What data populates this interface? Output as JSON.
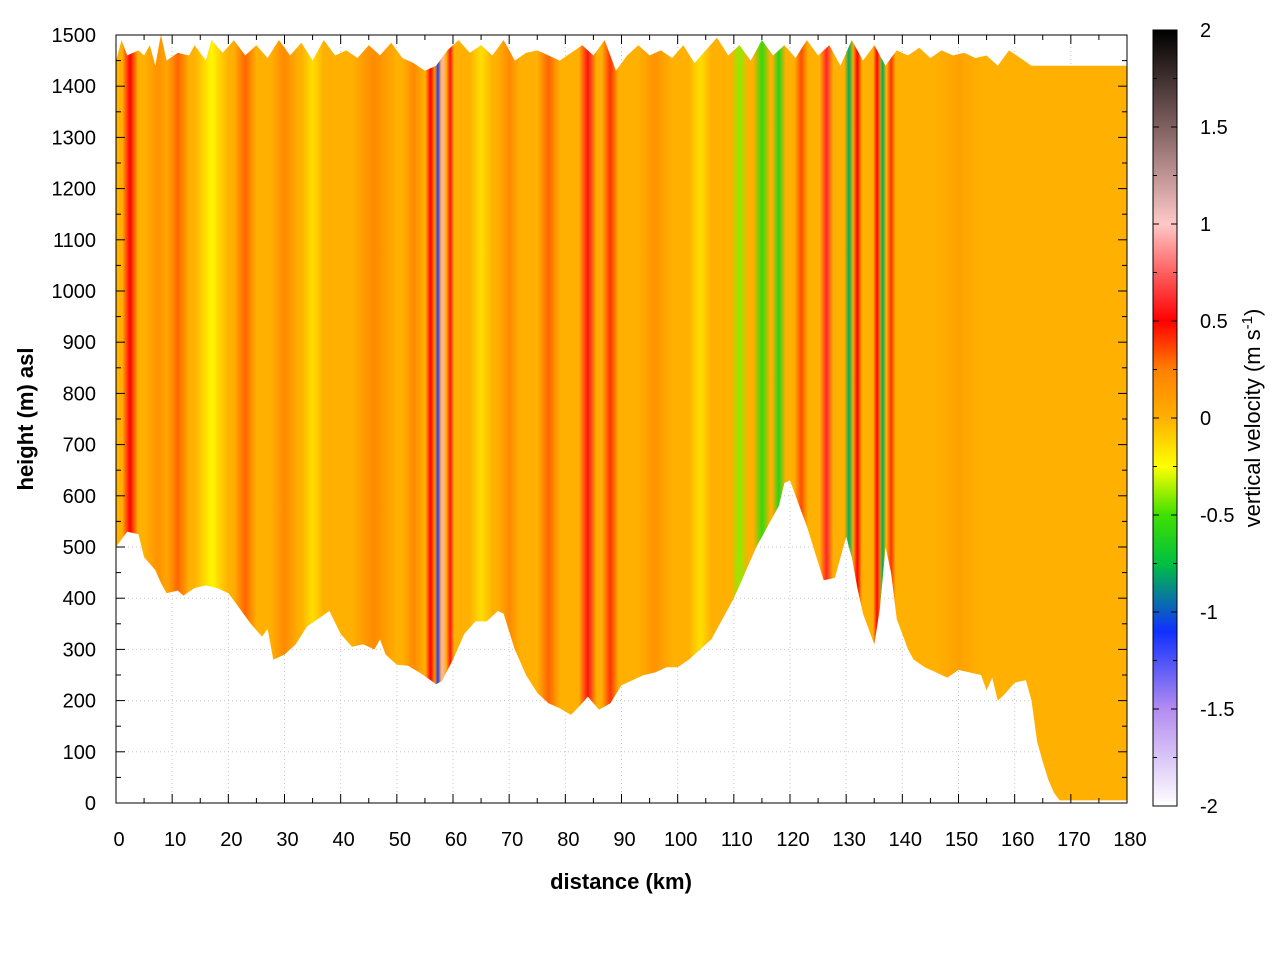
{
  "chart_data": {
    "type": "heatmap",
    "title": "",
    "xlabel": "distance (km)",
    "ylabel": "height (m) asl",
    "xlim": [
      0,
      180
    ],
    "ylim": [
      0,
      1500
    ],
    "x_ticks": [
      "0",
      "10",
      "20",
      "30",
      "40",
      "50",
      "60",
      "70",
      "80",
      "90",
      "100",
      "110",
      "120",
      "130",
      "140",
      "150",
      "160",
      "170",
      "180"
    ],
    "y_ticks": [
      "0",
      "100",
      "200",
      "300",
      "400",
      "500",
      "600",
      "700",
      "800",
      "900",
      "1000",
      "1100",
      "1200",
      "1300",
      "1400",
      "1500"
    ],
    "grid": true,
    "colorbar": {
      "label_main": "vertical velocity (m s",
      "label_sup": "-1",
      "label_close": ")",
      "range": [
        -2,
        2
      ],
      "tick_values": [
        2,
        1.5,
        1,
        0.5,
        0,
        -0.5,
        -1,
        -1.5,
        -2
      ],
      "tick_labels": [
        "2",
        "1.5",
        "1",
        "0.5",
        "0",
        "-0.5",
        "-1",
        "-1.5",
        "-2"
      ],
      "colors": [
        {
          "v": -2.0,
          "c": "#ffffff"
        },
        {
          "v": -1.5,
          "c": "#b38cf0"
        },
        {
          "v": -1.1,
          "c": "#1030ff"
        },
        {
          "v": -0.75,
          "c": "#00c040"
        },
        {
          "v": -0.5,
          "c": "#40e000"
        },
        {
          "v": -0.25,
          "c": "#ffff00"
        },
        {
          "v": 0.0,
          "c": "#ffb000"
        },
        {
          "v": 0.25,
          "c": "#ff8000"
        },
        {
          "v": 0.5,
          "c": "#ff0000"
        },
        {
          "v": 0.75,
          "c": "#ff6060"
        },
        {
          "v": 1.0,
          "c": "#ffc8c8"
        },
        {
          "v": 1.5,
          "c": "#806060"
        },
        {
          "v": 2.0,
          "c": "#000000"
        }
      ]
    },
    "terrain_bottom": [
      [
        0,
        500
      ],
      [
        2,
        530
      ],
      [
        4,
        525
      ],
      [
        5,
        480
      ],
      [
        7,
        455
      ],
      [
        8,
        430
      ],
      [
        9,
        410
      ],
      [
        11,
        415
      ],
      [
        12,
        405
      ],
      [
        14,
        420
      ],
      [
        16,
        425
      ],
      [
        18,
        420
      ],
      [
        20,
        410
      ],
      [
        22,
        380
      ],
      [
        24,
        350
      ],
      [
        26,
        325
      ],
      [
        27,
        340
      ],
      [
        28,
        280
      ],
      [
        30,
        290
      ],
      [
        32,
        310
      ],
      [
        34,
        345
      ],
      [
        36,
        360
      ],
      [
        38,
        375
      ],
      [
        40,
        330
      ],
      [
        42,
        305
      ],
      [
        44,
        310
      ],
      [
        46,
        300
      ],
      [
        47,
        320
      ],
      [
        48,
        290
      ],
      [
        50,
        270
      ],
      [
        52,
        268
      ],
      [
        54,
        255
      ],
      [
        56,
        240
      ],
      [
        57,
        232
      ],
      [
        58,
        238
      ],
      [
        60,
        280
      ],
      [
        62,
        330
      ],
      [
        64,
        355
      ],
      [
        66,
        355
      ],
      [
        68,
        375
      ],
      [
        69,
        370
      ],
      [
        71,
        300
      ],
      [
        73,
        250
      ],
      [
        75,
        215
      ],
      [
        77,
        195
      ],
      [
        79,
        185
      ],
      [
        81,
        172
      ],
      [
        83,
        195
      ],
      [
        84,
        208
      ],
      [
        86,
        182
      ],
      [
        88,
        195
      ],
      [
        90,
        230
      ],
      [
        92,
        240
      ],
      [
        94,
        250
      ],
      [
        96,
        255
      ],
      [
        98,
        265
      ],
      [
        100,
        265
      ],
      [
        102,
        280
      ],
      [
        104,
        300
      ],
      [
        106,
        320
      ],
      [
        108,
        360
      ],
      [
        110,
        400
      ],
      [
        112,
        450
      ],
      [
        114,
        500
      ],
      [
        116,
        540
      ],
      [
        118,
        580
      ],
      [
        119,
        625
      ],
      [
        120,
        630
      ],
      [
        121,
        600
      ],
      [
        123,
        540
      ],
      [
        125,
        470
      ],
      [
        126,
        435
      ],
      [
        128,
        440
      ],
      [
        130,
        520
      ],
      [
        131,
        480
      ],
      [
        132,
        420
      ],
      [
        133,
        370
      ],
      [
        134,
        340
      ],
      [
        135,
        310
      ],
      [
        136,
        380
      ],
      [
        137,
        500
      ],
      [
        138,
        450
      ],
      [
        139,
        360
      ],
      [
        140,
        330
      ],
      [
        141,
        300
      ],
      [
        142,
        280
      ],
      [
        144,
        265
      ],
      [
        146,
        255
      ],
      [
        148,
        245
      ],
      [
        150,
        260
      ],
      [
        152,
        255
      ],
      [
        154,
        250
      ],
      [
        155,
        220
      ],
      [
        156,
        245
      ],
      [
        157,
        200
      ],
      [
        158,
        210
      ],
      [
        160,
        235
      ],
      [
        162,
        240
      ],
      [
        163,
        200
      ],
      [
        164,
        120
      ],
      [
        165,
        80
      ],
      [
        166,
        45
      ],
      [
        167,
        20
      ],
      [
        168,
        5
      ],
      [
        180,
        5
      ]
    ],
    "terrain_top": [
      [
        0,
        1450
      ],
      [
        1,
        1490
      ],
      [
        2,
        1460
      ],
      [
        4,
        1470
      ],
      [
        5,
        1460
      ],
      [
        6,
        1480
      ],
      [
        7,
        1440
      ],
      [
        8,
        1500
      ],
      [
        9,
        1450
      ],
      [
        11,
        1465
      ],
      [
        13,
        1460
      ],
      [
        14,
        1480
      ],
      [
        16,
        1450
      ],
      [
        17,
        1490
      ],
      [
        19,
        1465
      ],
      [
        21,
        1490
      ],
      [
        23,
        1460
      ],
      [
        25,
        1480
      ],
      [
        27,
        1455
      ],
      [
        29,
        1490
      ],
      [
        31,
        1460
      ],
      [
        33,
        1485
      ],
      [
        35,
        1450
      ],
      [
        37,
        1490
      ],
      [
        39,
        1460
      ],
      [
        41,
        1470
      ],
      [
        43,
        1455
      ],
      [
        45,
        1480
      ],
      [
        47,
        1460
      ],
      [
        49,
        1485
      ],
      [
        51,
        1455
      ],
      [
        53,
        1445
      ],
      [
        55,
        1430
      ],
      [
        57,
        1440
      ],
      [
        59,
        1470
      ],
      [
        61,
        1490
      ],
      [
        63,
        1465
      ],
      [
        65,
        1480
      ],
      [
        67,
        1460
      ],
      [
        69,
        1490
      ],
      [
        71,
        1450
      ],
      [
        73,
        1465
      ],
      [
        75,
        1470
      ],
      [
        77,
        1460
      ],
      [
        79,
        1450
      ],
      [
        81,
        1465
      ],
      [
        83,
        1480
      ],
      [
        85,
        1460
      ],
      [
        87,
        1490
      ],
      [
        89,
        1430
      ],
      [
        91,
        1460
      ],
      [
        93,
        1480
      ],
      [
        95,
        1460
      ],
      [
        97,
        1470
      ],
      [
        99,
        1455
      ],
      [
        101,
        1480
      ],
      [
        103,
        1445
      ],
      [
        105,
        1470
      ],
      [
        107,
        1495
      ],
      [
        109,
        1460
      ],
      [
        111,
        1480
      ],
      [
        113,
        1450
      ],
      [
        115,
        1490
      ],
      [
        117,
        1460
      ],
      [
        119,
        1480
      ],
      [
        121,
        1455
      ],
      [
        123,
        1490
      ],
      [
        125,
        1460
      ],
      [
        127,
        1480
      ],
      [
        129,
        1440
      ],
      [
        131,
        1490
      ],
      [
        133,
        1450
      ],
      [
        135,
        1480
      ],
      [
        137,
        1440
      ],
      [
        139,
        1470
      ],
      [
        141,
        1460
      ],
      [
        143,
        1475
      ],
      [
        145,
        1455
      ],
      [
        147,
        1470
      ],
      [
        149,
        1460
      ],
      [
        151,
        1465
      ],
      [
        153,
        1455
      ],
      [
        155,
        1460
      ],
      [
        157,
        1440
      ],
      [
        159,
        1470
      ],
      [
        161,
        1455
      ],
      [
        163,
        1440
      ],
      [
        164,
        1440
      ],
      [
        180,
        1440
      ]
    ],
    "velocity_features": [
      {
        "x": 2.5,
        "width": 1.4,
        "v": 0.5
      },
      {
        "x": 7.5,
        "width": 2.5,
        "v": 0.15
      },
      {
        "x": 11,
        "width": 2.0,
        "v": 0.3
      },
      {
        "x": 17,
        "width": 3.0,
        "v": -0.22
      },
      {
        "x": 23,
        "width": 2.0,
        "v": 0.3
      },
      {
        "x": 30,
        "width": 2.5,
        "v": 0.2
      },
      {
        "x": 35,
        "width": 2.0,
        "v": -0.15
      },
      {
        "x": 46,
        "width": 4.0,
        "v": 0.2
      },
      {
        "x": 53,
        "width": 2.0,
        "v": 0.2
      },
      {
        "x": 56,
        "width": 0.9,
        "v": 0.5
      },
      {
        "x": 57.3,
        "width": 0.6,
        "v": -1.15
      },
      {
        "x": 58.2,
        "width": 0.6,
        "v": 0.95
      },
      {
        "x": 59.5,
        "width": 0.7,
        "v": 0.55
      },
      {
        "x": 65,
        "width": 2.0,
        "v": -0.15
      },
      {
        "x": 70,
        "width": 2.0,
        "v": 0.2
      },
      {
        "x": 77,
        "width": 2.0,
        "v": 0.3
      },
      {
        "x": 84,
        "width": 1.6,
        "v": 0.55
      },
      {
        "x": 88,
        "width": 1.5,
        "v": 0.4
      },
      {
        "x": 96,
        "width": 3.0,
        "v": 0.15
      },
      {
        "x": 104,
        "width": 2.0,
        "v": -0.15
      },
      {
        "x": 111,
        "width": 1.5,
        "v": -0.4
      },
      {
        "x": 115,
        "width": 1.5,
        "v": -0.55
      },
      {
        "x": 118,
        "width": 1.2,
        "v": -0.6
      },
      {
        "x": 122,
        "width": 1.2,
        "v": 0.35
      },
      {
        "x": 126.5,
        "width": 1.2,
        "v": 0.6
      },
      {
        "x": 130.5,
        "width": 0.8,
        "v": -0.8
      },
      {
        "x": 132,
        "width": 0.8,
        "v": 0.5
      },
      {
        "x": 135.5,
        "width": 0.7,
        "v": 0.5
      },
      {
        "x": 136.5,
        "width": 0.6,
        "v": -0.8
      },
      {
        "x": 138,
        "width": 0.8,
        "v": 0.4
      },
      {
        "x": 150,
        "width": 4.0,
        "v": 0.08
      }
    ]
  }
}
